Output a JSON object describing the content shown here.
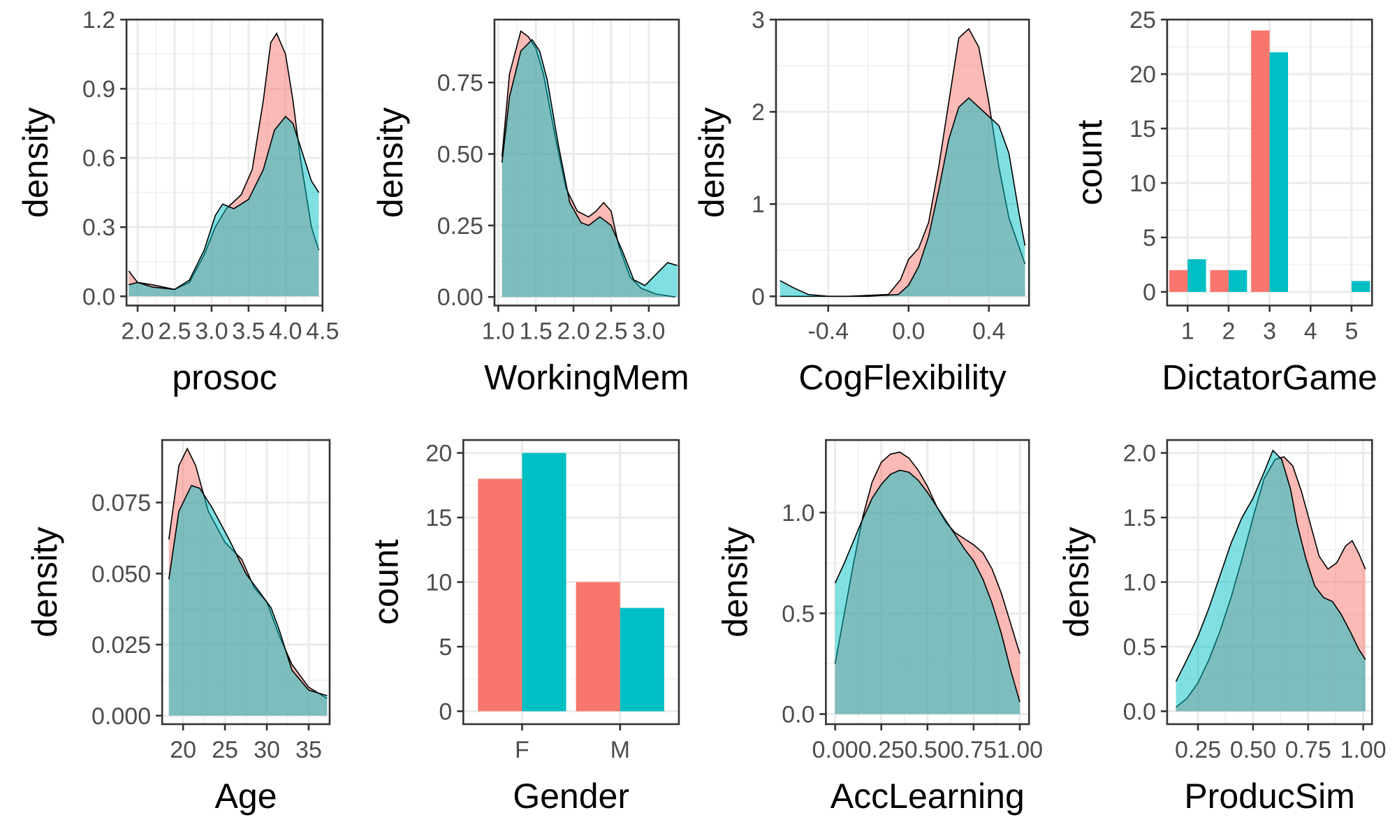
{
  "colors": {
    "red": "#F8766D",
    "teal": "#00BFC4",
    "red_fill": "#F8766D",
    "teal_fill": "#00BFC4"
  },
  "chart_data": [
    {
      "type": "area",
      "xlabel": "prosoc",
      "ylabel": "density",
      "xlim": [
        1.85,
        4.5
      ],
      "ylim": [
        -0.04,
        1.2
      ],
      "xticks": [
        2.0,
        2.5,
        3.0,
        3.5,
        4.0,
        4.5
      ],
      "xtick_labels": [
        "2.0",
        "2.5",
        "3.0",
        "3.5",
        "4.0",
        "4.5"
      ],
      "yticks": [
        0.0,
        0.3,
        0.6,
        0.9,
        1.2
      ],
      "ytick_labels": [
        "0.0",
        "0.3",
        "0.6",
        "0.9",
        "1.2"
      ],
      "grid": true,
      "series": [
        {
          "color": "red",
          "x": [
            1.88,
            2.0,
            2.2,
            2.5,
            2.7,
            2.9,
            3.05,
            3.2,
            3.4,
            3.55,
            3.7,
            3.8,
            3.88,
            4.0,
            4.1,
            4.2,
            4.35,
            4.45
          ],
          "y": [
            0.11,
            0.06,
            0.05,
            0.03,
            0.06,
            0.18,
            0.3,
            0.38,
            0.44,
            0.55,
            0.85,
            1.1,
            1.14,
            1.05,
            0.85,
            0.6,
            0.3,
            0.2
          ]
        },
        {
          "color": "teal",
          "x": [
            1.88,
            2.0,
            2.2,
            2.5,
            2.7,
            2.9,
            3.05,
            3.15,
            3.3,
            3.5,
            3.7,
            3.85,
            4.0,
            4.1,
            4.2,
            4.35,
            4.45
          ],
          "y": [
            0.05,
            0.06,
            0.04,
            0.03,
            0.07,
            0.2,
            0.35,
            0.4,
            0.38,
            0.42,
            0.55,
            0.72,
            0.78,
            0.75,
            0.65,
            0.5,
            0.45
          ]
        }
      ]
    },
    {
      "type": "area",
      "xlabel": "WorkingMem",
      "ylabel": "density",
      "xlim": [
        0.95,
        3.4
      ],
      "ylim": [
        -0.03,
        0.97
      ],
      "xticks": [
        1.0,
        1.5,
        2.0,
        2.5,
        3.0
      ],
      "xtick_labels": [
        "1.0",
        "1.5",
        "2.0",
        "2.5",
        "3.0"
      ],
      "yticks": [
        0.0,
        0.25,
        0.5,
        0.75
      ],
      "ytick_labels": [
        "0.00",
        "0.25",
        "0.50",
        "0.75"
      ],
      "grid": true,
      "series": [
        {
          "color": "red",
          "x": [
            1.05,
            1.15,
            1.3,
            1.4,
            1.5,
            1.6,
            1.75,
            1.9,
            2.05,
            2.2,
            2.3,
            2.4,
            2.5,
            2.6,
            2.75,
            2.9,
            3.1,
            3.35
          ],
          "y": [
            0.49,
            0.78,
            0.93,
            0.91,
            0.87,
            0.78,
            0.57,
            0.38,
            0.3,
            0.28,
            0.3,
            0.33,
            0.3,
            0.18,
            0.07,
            0.03,
            0.01,
            0.0
          ]
        },
        {
          "color": "teal",
          "x": [
            1.05,
            1.15,
            1.3,
            1.45,
            1.55,
            1.65,
            1.8,
            1.95,
            2.1,
            2.2,
            2.35,
            2.5,
            2.65,
            2.8,
            2.95,
            3.1,
            3.25,
            3.38
          ],
          "y": [
            0.47,
            0.7,
            0.86,
            0.9,
            0.86,
            0.76,
            0.53,
            0.33,
            0.26,
            0.25,
            0.28,
            0.25,
            0.16,
            0.06,
            0.04,
            0.08,
            0.12,
            0.11
          ]
        }
      ]
    },
    {
      "type": "area",
      "xlabel": "CogFlexibility",
      "ylabel": "density",
      "xlim": [
        -0.66,
        0.6
      ],
      "ylim": [
        -0.1,
        3.0
      ],
      "xticks": [
        -0.4,
        0.0,
        0.4
      ],
      "xtick_labels": [
        "-0.4",
        "0.0",
        "0.4"
      ],
      "yticks": [
        0,
        1,
        2,
        3
      ],
      "ytick_labels": [
        "0",
        "1",
        "2",
        "3"
      ],
      "grid": true,
      "series": [
        {
          "color": "red",
          "x": [
            -0.64,
            -0.5,
            -0.3,
            -0.1,
            -0.04,
            0.0,
            0.05,
            0.1,
            0.15,
            0.2,
            0.25,
            0.3,
            0.35,
            0.4,
            0.45,
            0.5,
            0.58
          ],
          "y": [
            0.0,
            0.0,
            0.0,
            0.02,
            0.18,
            0.4,
            0.52,
            0.8,
            1.4,
            2.1,
            2.8,
            2.9,
            2.7,
            2.1,
            1.4,
            0.85,
            0.35
          ]
        },
        {
          "color": "teal",
          "x": [
            -0.64,
            -0.58,
            -0.5,
            -0.4,
            -0.2,
            -0.05,
            0.0,
            0.05,
            0.1,
            0.15,
            0.2,
            0.25,
            0.3,
            0.35,
            0.4,
            0.45,
            0.5,
            0.55,
            0.58
          ],
          "y": [
            0.17,
            0.1,
            0.02,
            0.0,
            0.0,
            0.02,
            0.12,
            0.32,
            0.65,
            1.15,
            1.7,
            2.05,
            2.15,
            2.05,
            1.95,
            1.85,
            1.55,
            0.9,
            0.55
          ]
        }
      ]
    },
    {
      "type": "bar",
      "xlabel": "DictatorGame",
      "ylabel": "count",
      "xlim": [
        0.5,
        5.5
      ],
      "ylim": [
        -1.25,
        25
      ],
      "xticks": [
        1,
        2,
        3,
        4,
        5
      ],
      "xtick_labels": [
        "1",
        "2",
        "3",
        "4",
        "5"
      ],
      "yticks": [
        0,
        5,
        10,
        15,
        20,
        25
      ],
      "ytick_labels": [
        "0",
        "5",
        "10",
        "15",
        "20",
        "25"
      ],
      "grid": true,
      "bar_width": 0.9,
      "categories": [
        1,
        2,
        3,
        4,
        5
      ],
      "series": [
        {
          "color": "red",
          "values": [
            2,
            2,
            24,
            0,
            0
          ]
        },
        {
          "color": "teal",
          "values": [
            3,
            2,
            22,
            0,
            1
          ]
        }
      ]
    },
    {
      "type": "area",
      "xlabel": "Age",
      "ylabel": "density",
      "xlim": [
        17.5,
        37.5
      ],
      "ylim": [
        -0.003,
        0.097
      ],
      "xticks": [
        20,
        25,
        30,
        35
      ],
      "xtick_labels": [
        "20",
        "25",
        "30",
        "35"
      ],
      "yticks": [
        0.0,
        0.025,
        0.05,
        0.075
      ],
      "ytick_labels": [
        "0.000",
        "0.025",
        "0.050",
        "0.075"
      ],
      "grid": true,
      "series": [
        {
          "color": "red",
          "x": [
            18.3,
            19.5,
            20.5,
            21.5,
            23,
            25,
            27,
            28.5,
            30,
            31.5,
            33,
            35,
            37.2
          ],
          "y": [
            0.062,
            0.088,
            0.094,
            0.088,
            0.072,
            0.061,
            0.055,
            0.045,
            0.04,
            0.028,
            0.018,
            0.01,
            0.006
          ]
        },
        {
          "color": "teal",
          "x": [
            18.3,
            19.5,
            21,
            22,
            23.5,
            25.5,
            27.5,
            29.5,
            30.5,
            31.5,
            33,
            35,
            37.2
          ],
          "y": [
            0.048,
            0.072,
            0.081,
            0.08,
            0.073,
            0.062,
            0.05,
            0.042,
            0.038,
            0.03,
            0.016,
            0.009,
            0.007
          ]
        }
      ]
    },
    {
      "type": "bar",
      "xlabel": "Gender",
      "ylabel": "count",
      "xlim": [
        0.4,
        2.6
      ],
      "ylim": [
        -1,
        21
      ],
      "xticks": [
        1,
        2
      ],
      "xtick_labels": [
        "F",
        "M"
      ],
      "yticks": [
        0,
        5,
        10,
        15,
        20
      ],
      "ytick_labels": [
        "0",
        "5",
        "10",
        "15",
        "20"
      ],
      "grid": true,
      "bar_width": 0.9,
      "categories": [
        "F",
        "M"
      ],
      "series": [
        {
          "color": "red",
          "values": [
            18,
            10
          ]
        },
        {
          "color": "teal",
          "values": [
            20,
            8
          ]
        }
      ]
    },
    {
      "type": "area",
      "xlabel": "AccLearning",
      "ylabel": "density",
      "xlim": [
        -0.05,
        1.05
      ],
      "ylim": [
        -0.05,
        1.36
      ],
      "xticks": [
        0.0,
        0.25,
        0.5,
        0.75,
        1.0
      ],
      "xtick_labels": [
        "0.00",
        "0.25",
        "0.50",
        "0.75",
        "1.00"
      ],
      "yticks": [
        0.0,
        0.5,
        1.0
      ],
      "ytick_labels": [
        "0.0",
        "0.5",
        "1.0"
      ],
      "grid": true,
      "series": [
        {
          "color": "red",
          "x": [
            0.0,
            0.05,
            0.1,
            0.15,
            0.2,
            0.25,
            0.3,
            0.35,
            0.4,
            0.45,
            0.5,
            0.55,
            0.6,
            0.65,
            0.7,
            0.75,
            0.8,
            0.85,
            0.9,
            0.95,
            1.0
          ],
          "y": [
            0.25,
            0.5,
            0.75,
            0.98,
            1.15,
            1.25,
            1.29,
            1.3,
            1.27,
            1.21,
            1.13,
            1.03,
            0.95,
            0.9,
            0.87,
            0.84,
            0.8,
            0.72,
            0.6,
            0.45,
            0.3
          ]
        },
        {
          "color": "teal",
          "x": [
            0.0,
            0.05,
            0.1,
            0.15,
            0.2,
            0.25,
            0.3,
            0.35,
            0.4,
            0.45,
            0.5,
            0.55,
            0.6,
            0.65,
            0.7,
            0.75,
            0.8,
            0.85,
            0.9,
            0.95,
            1.0
          ],
          "y": [
            0.65,
            0.75,
            0.86,
            0.97,
            1.07,
            1.14,
            1.19,
            1.21,
            1.2,
            1.16,
            1.1,
            1.03,
            0.96,
            0.89,
            0.82,
            0.76,
            0.67,
            0.55,
            0.4,
            0.22,
            0.06
          ]
        }
      ]
    },
    {
      "type": "area",
      "xlabel": "ProducSim",
      "ylabel": "density",
      "xlim": [
        0.11,
        1.04
      ],
      "ylim": [
        -0.1,
        2.1
      ],
      "xticks": [
        0.25,
        0.5,
        0.75,
        1.0
      ],
      "xtick_labels": [
        "0.25",
        "0.50",
        "0.75",
        "1.00"
      ],
      "yticks": [
        0.0,
        0.5,
        1.0,
        1.5,
        2.0
      ],
      "ytick_labels": [
        "0.0",
        "0.5",
        "1.0",
        "1.5",
        "2.0"
      ],
      "grid": true,
      "series": [
        {
          "color": "red",
          "x": [
            0.15,
            0.2,
            0.25,
            0.3,
            0.35,
            0.4,
            0.45,
            0.5,
            0.55,
            0.6,
            0.64,
            0.68,
            0.72,
            0.76,
            0.8,
            0.84,
            0.88,
            0.92,
            0.95,
            0.98,
            1.01
          ],
          "y": [
            0.03,
            0.1,
            0.22,
            0.4,
            0.62,
            0.88,
            1.18,
            1.5,
            1.8,
            1.95,
            1.97,
            1.9,
            1.7,
            1.45,
            1.2,
            1.1,
            1.15,
            1.28,
            1.32,
            1.22,
            1.1
          ]
        },
        {
          "color": "teal",
          "x": [
            0.15,
            0.2,
            0.25,
            0.3,
            0.35,
            0.4,
            0.45,
            0.5,
            0.55,
            0.59,
            0.63,
            0.67,
            0.7,
            0.74,
            0.78,
            0.82,
            0.86,
            0.9,
            0.94,
            0.98,
            1.01
          ],
          "y": [
            0.23,
            0.4,
            0.58,
            0.8,
            1.05,
            1.3,
            1.5,
            1.65,
            1.85,
            2.02,
            1.95,
            1.72,
            1.45,
            1.18,
            0.97,
            0.88,
            0.85,
            0.75,
            0.62,
            0.48,
            0.4
          ]
        }
      ]
    }
  ]
}
